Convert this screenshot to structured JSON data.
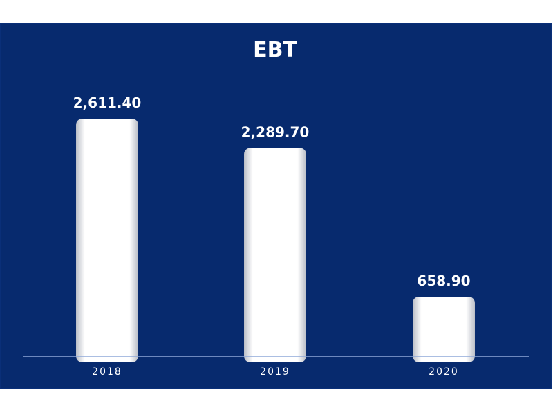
{
  "chart_data": {
    "type": "bar",
    "title": "EBT",
    "xlabel": "",
    "ylabel": "",
    "categories": [
      "2018",
      "2019",
      "2020"
    ],
    "values": [
      2611.4,
      2289.7,
      658.9
    ],
    "value_labels": [
      "2,611.40",
      "2,289.70",
      "658.90"
    ],
    "ylim": [
      0,
      2611.4
    ],
    "grid": false,
    "legend": "none"
  },
  "colors": {
    "background": "#072a6e",
    "bar": "#ffffff",
    "axis": "#8fa8d8",
    "text": "#ffffff"
  }
}
